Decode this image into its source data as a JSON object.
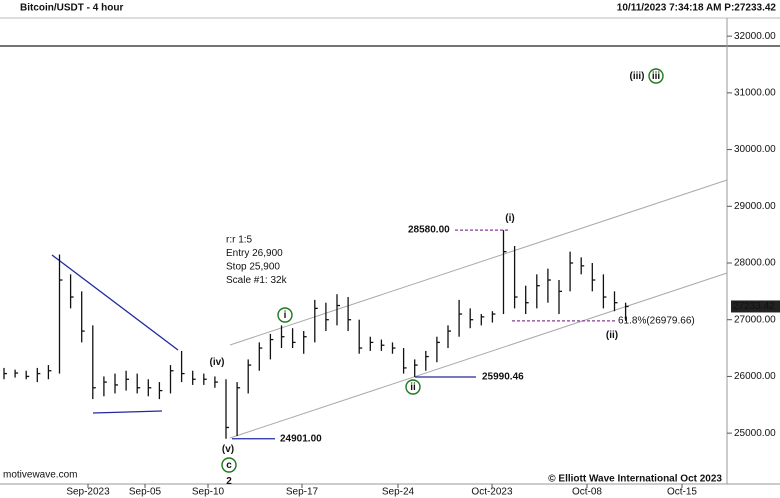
{
  "chart_data": {
    "type": "ohlc",
    "title": "Bitcoin/USDT - 4 hour",
    "timestamp": "10/11/2023 7:34:18 AM  P:27233.42",
    "color": "#111111",
    "high": [
      26150,
      26120,
      26100,
      26150,
      26200,
      28150,
      27800,
      27500,
      26900,
      26000,
      26050,
      26100,
      26050,
      25950,
      25900,
      26200,
      26450,
      26100,
      26050,
      26000,
      25950,
      25900,
      26300,
      26600,
      26750,
      26900,
      26850,
      26800,
      27350,
      27300,
      27450,
      27400,
      27000,
      26700,
      26650,
      26600,
      26500,
      26300,
      26450,
      26700,
      26900,
      27350,
      27200,
      27100,
      27150,
      28580,
      28300,
      27600,
      27800,
      27900,
      27700,
      28200,
      28100,
      28000,
      27800,
      27500,
      27300
    ],
    "low": [
      25950,
      25980,
      25950,
      25900,
      25950,
      26050,
      27200,
      26600,
      25600,
      25650,
      25700,
      25750,
      25700,
      25650,
      25600,
      25700,
      25900,
      25850,
      25850,
      25800,
      24901,
      24950,
      25700,
      26100,
      26300,
      26500,
      26500,
      26400,
      26600,
      26800,
      26900,
      26800,
      26400,
      26450,
      26450,
      26400,
      26050,
      25990.46,
      26100,
      26250,
      26500,
      26700,
      26850,
      26900,
      26950,
      27100,
      27200,
      27100,
      27200,
      27300,
      27100,
      27500,
      27800,
      27500,
      27200,
      27150,
      26979.66
    ],
    "close": [
      26050,
      26060,
      26000,
      26050,
      26100,
      27700,
      27400,
      26800,
      25800,
      25900,
      25850,
      25950,
      25800,
      25800,
      25750,
      26100,
      26050,
      25950,
      25950,
      25900,
      25100,
      25800,
      26200,
      26500,
      26650,
      26700,
      26600,
      26700,
      27200,
      27000,
      27250,
      27000,
      26500,
      26600,
      26550,
      26500,
      26150,
      26200,
      26350,
      26600,
      26800,
      27100,
      27000,
      27050,
      27100,
      28200,
      27400,
      27300,
      27600,
      27700,
      27500,
      28000,
      27950,
      27700,
      27400,
      27300,
      27233.42
    ],
    "ylim": [
      24350,
      32320
    ],
    "yticks": [
      {
        "value": 25000,
        "label": "25000.00"
      },
      {
        "value": 26000,
        "label": "26000.00"
      },
      {
        "value": 27000,
        "label": "27000.00"
      },
      {
        "value": 28000,
        "label": "28000.00"
      },
      {
        "value": 29000,
        "label": "29000.00"
      },
      {
        "value": 30000,
        "label": "30000.00"
      },
      {
        "value": 31000,
        "label": "31000.00"
      },
      {
        "value": 32000,
        "label": "32000.00"
      }
    ],
    "x_labels": [
      "Sep-2023",
      "Sep-05",
      "Sep-10",
      "Sep-17",
      "Sep-24",
      "Oct-2023",
      "Oct-08",
      "Oct-15"
    ],
    "last_price": {
      "value": 27233.42,
      "label": "27233.42"
    },
    "levels": [
      {
        "value": 28580,
        "label": "28580.00",
        "color": "#1f2a9e",
        "line_color": "#8a3a9a",
        "style": "dashed"
      },
      {
        "value": 25990.46,
        "label": "25990.46",
        "color": "#1f2a9e",
        "line_color": "#1f2a9e",
        "style": "solid"
      },
      {
        "value": 24901,
        "label": "24901.00",
        "color": "#1f2a9e",
        "line_color": "#1f2a9e",
        "style": "solid"
      },
      {
        "value": 26979.66,
        "label": "61.8%(26979.66)",
        "color": "#8a3a9a",
        "line_color": "#8a3a9a",
        "style": "dashed"
      }
    ],
    "wave_labels": [
      {
        "text": "(iii)",
        "color": "#7b1f7b",
        "circled": false
      },
      {
        "text": "iii",
        "color": "#1a7a1a",
        "circled": true
      },
      {
        "text": "(i)",
        "color": "#7b1f7b",
        "circled": false
      },
      {
        "text": "(ii)",
        "color": "#7b1f7b",
        "circled": false
      },
      {
        "text": "i",
        "color": "#1a7a1a",
        "circled": true
      },
      {
        "text": "(iv)",
        "color": "#7b1f7b",
        "circled": false
      },
      {
        "text": "(v)",
        "color": "#7b1f7b",
        "circled": false
      },
      {
        "text": "c",
        "color": "#1a7a1a",
        "circled": true
      },
      {
        "text": "2",
        "color": "#d01010",
        "circled": false
      },
      {
        "text": "ii",
        "color": "#1a7a1a",
        "circled": true
      }
    ],
    "notes": [
      "r:r 1:5",
      "Entry 26,900",
      "Stop 25,900",
      "Scale #1: 32k"
    ],
    "source": "motivewave.com",
    "copyright": "© Elliott Wave International Oct 2023"
  }
}
